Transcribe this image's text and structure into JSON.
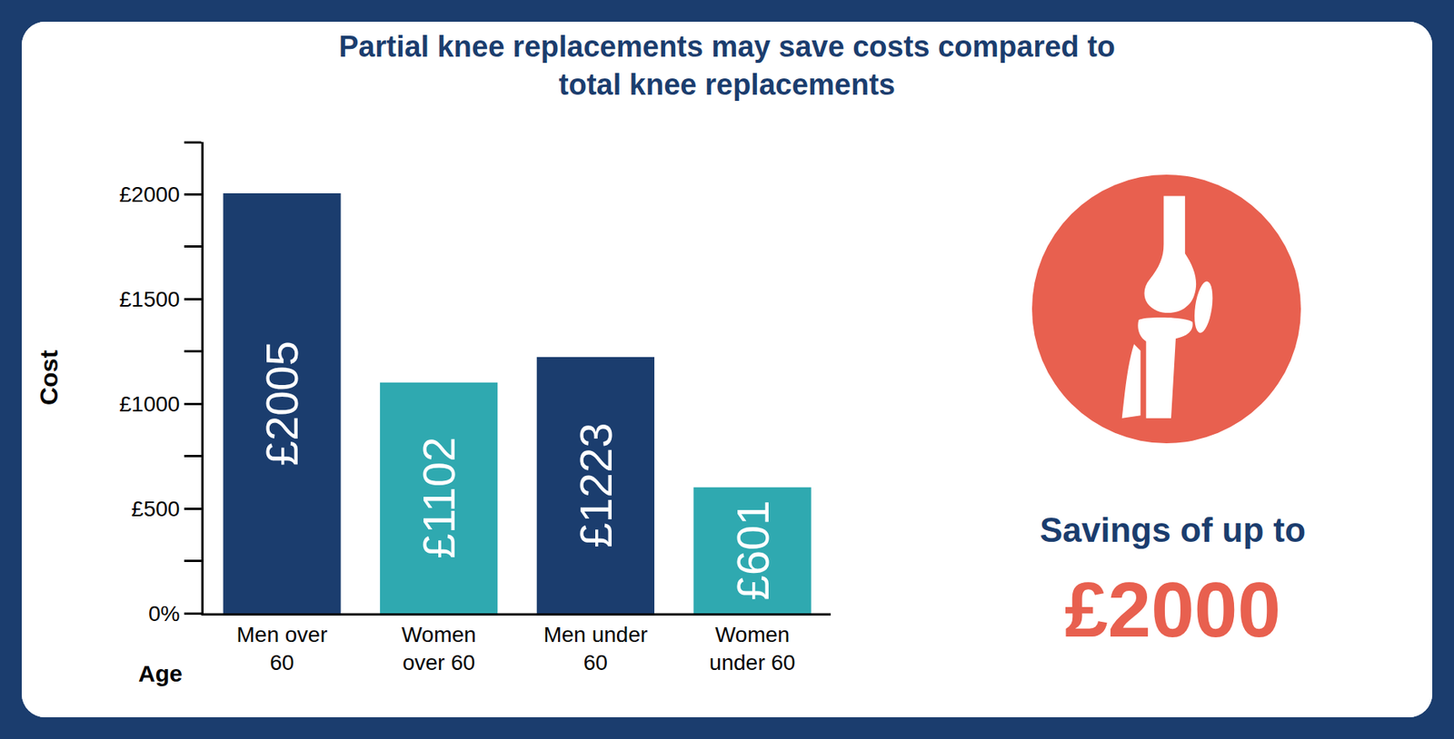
{
  "chart_data": {
    "type": "bar",
    "title": "Partial knee replacements may save costs compared to\ntotal knee replacements",
    "categories": [
      "Men over\n60",
      "Women\nover 60",
      "Men under\n60",
      "Women\nunder 60"
    ],
    "values": [
      2005,
      1102,
      1223,
      601
    ],
    "value_labels": [
      "£2005",
      "£1102",
      "£1223",
      "£601"
    ],
    "data_labels": true,
    "colors": [
      "#1b3d6e",
      "#2fa9b0",
      "#1b3d6e",
      "#2fa9b0"
    ],
    "x_label": "Age",
    "y_label": "Cost",
    "ylim": [
      0,
      2250
    ],
    "yticks": [
      {
        "value": 0,
        "label": "0%"
      },
      {
        "value": 500,
        "label": "£500"
      },
      {
        "value": 1000,
        "label": "£1000"
      },
      {
        "value": 1500,
        "label": "£1500"
      },
      {
        "value": 2000,
        "label": "£2000"
      }
    ],
    "grid": false,
    "annotations": [
      "Savings of up to",
      "£2000"
    ]
  }
}
